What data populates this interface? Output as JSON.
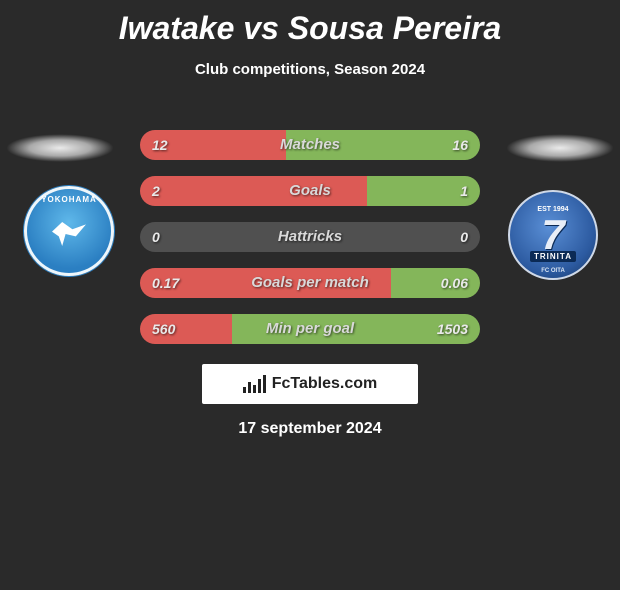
{
  "title": "Iwatake vs Sousa Pereira",
  "subtitle": "Club competitions, Season 2024",
  "date": "17 september 2024",
  "brand": "FcTables.com",
  "colors": {
    "left_bar": "#dc5a55",
    "right_bar": "#84b65a",
    "neutral_bar": "#505050",
    "background": "#2a2a2a"
  },
  "club_left": {
    "name": "YOKOHAMA"
  },
  "club_right": {
    "est": "EST 1994",
    "name": "TRINITA",
    "sub": "FC OITA"
  },
  "stats": [
    {
      "label": "Matches",
      "left_val": "12",
      "right_val": "16",
      "left_pct": 42.9,
      "right_pct": 57.1,
      "left_color": "#dc5a55",
      "right_color": "#84b65a"
    },
    {
      "label": "Goals",
      "left_val": "2",
      "right_val": "1",
      "left_pct": 66.7,
      "right_pct": 33.3,
      "left_color": "#dc5a55",
      "right_color": "#84b65a"
    },
    {
      "label": "Hattricks",
      "left_val": "0",
      "right_val": "0",
      "left_pct": 50,
      "right_pct": 50,
      "left_color": "#505050",
      "right_color": "#505050"
    },
    {
      "label": "Goals per match",
      "left_val": "0.17",
      "right_val": "0.06",
      "left_pct": 73.9,
      "right_pct": 26.1,
      "left_color": "#dc5a55",
      "right_color": "#84b65a"
    },
    {
      "label": "Min per goal",
      "left_val": "560",
      "right_val": "1503",
      "left_pct": 27.1,
      "right_pct": 72.9,
      "left_color": "#dc5a55",
      "right_color": "#84b65a"
    }
  ]
}
